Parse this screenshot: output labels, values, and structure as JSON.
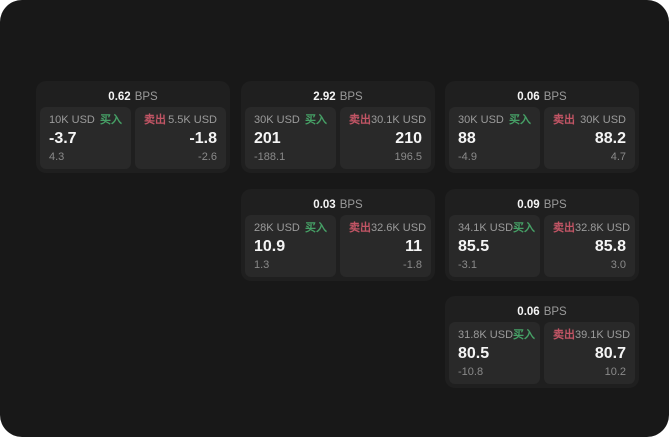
{
  "labels": {
    "bps_suffix": "BPS",
    "buy": "买入",
    "sell": "卖出"
  },
  "colors": {
    "page_bg": "#181818",
    "card_bg": "#1f1f1f",
    "panel_bg": "#292929",
    "buy_green": "#46a066",
    "sell_red": "#c25565",
    "text_primary": "#f5f5f5",
    "text_muted": "#9b9b9b"
  },
  "cards": [
    {
      "bps": "0.62",
      "buy": {
        "amount": "10K USD",
        "value": "-3.7",
        "sub": "4.3"
      },
      "sell": {
        "amount": "5.5K USD",
        "value": "-1.8",
        "sub": "-2.6"
      }
    },
    {
      "bps": "2.92",
      "buy": {
        "amount": "30K USD",
        "value": "201",
        "sub": "-188.1"
      },
      "sell": {
        "amount": "30.1K USD",
        "value": "210",
        "sub": "196.5"
      }
    },
    {
      "bps": "0.06",
      "buy": {
        "amount": "30K USD",
        "value": "88",
        "sub": "-4.9"
      },
      "sell": {
        "amount": "30K USD",
        "value": "88.2",
        "sub": "4.7"
      }
    },
    {
      "bps": "0.03",
      "buy": {
        "amount": "28K USD",
        "value": "10.9",
        "sub": "1.3"
      },
      "sell": {
        "amount": "32.6K USD",
        "value": "11",
        "sub": "-1.8"
      }
    },
    {
      "bps": "0.09",
      "buy": {
        "amount": "34.1K USD",
        "value": "85.5",
        "sub": "-3.1"
      },
      "sell": {
        "amount": "32.8K USD",
        "value": "85.8",
        "sub": "3.0"
      }
    },
    {
      "bps": "0.06",
      "buy": {
        "amount": "31.8K USD",
        "value": "80.5",
        "sub": "-10.8"
      },
      "sell": {
        "amount": "39.1K USD",
        "value": "80.7",
        "sub": "10.2"
      }
    }
  ]
}
